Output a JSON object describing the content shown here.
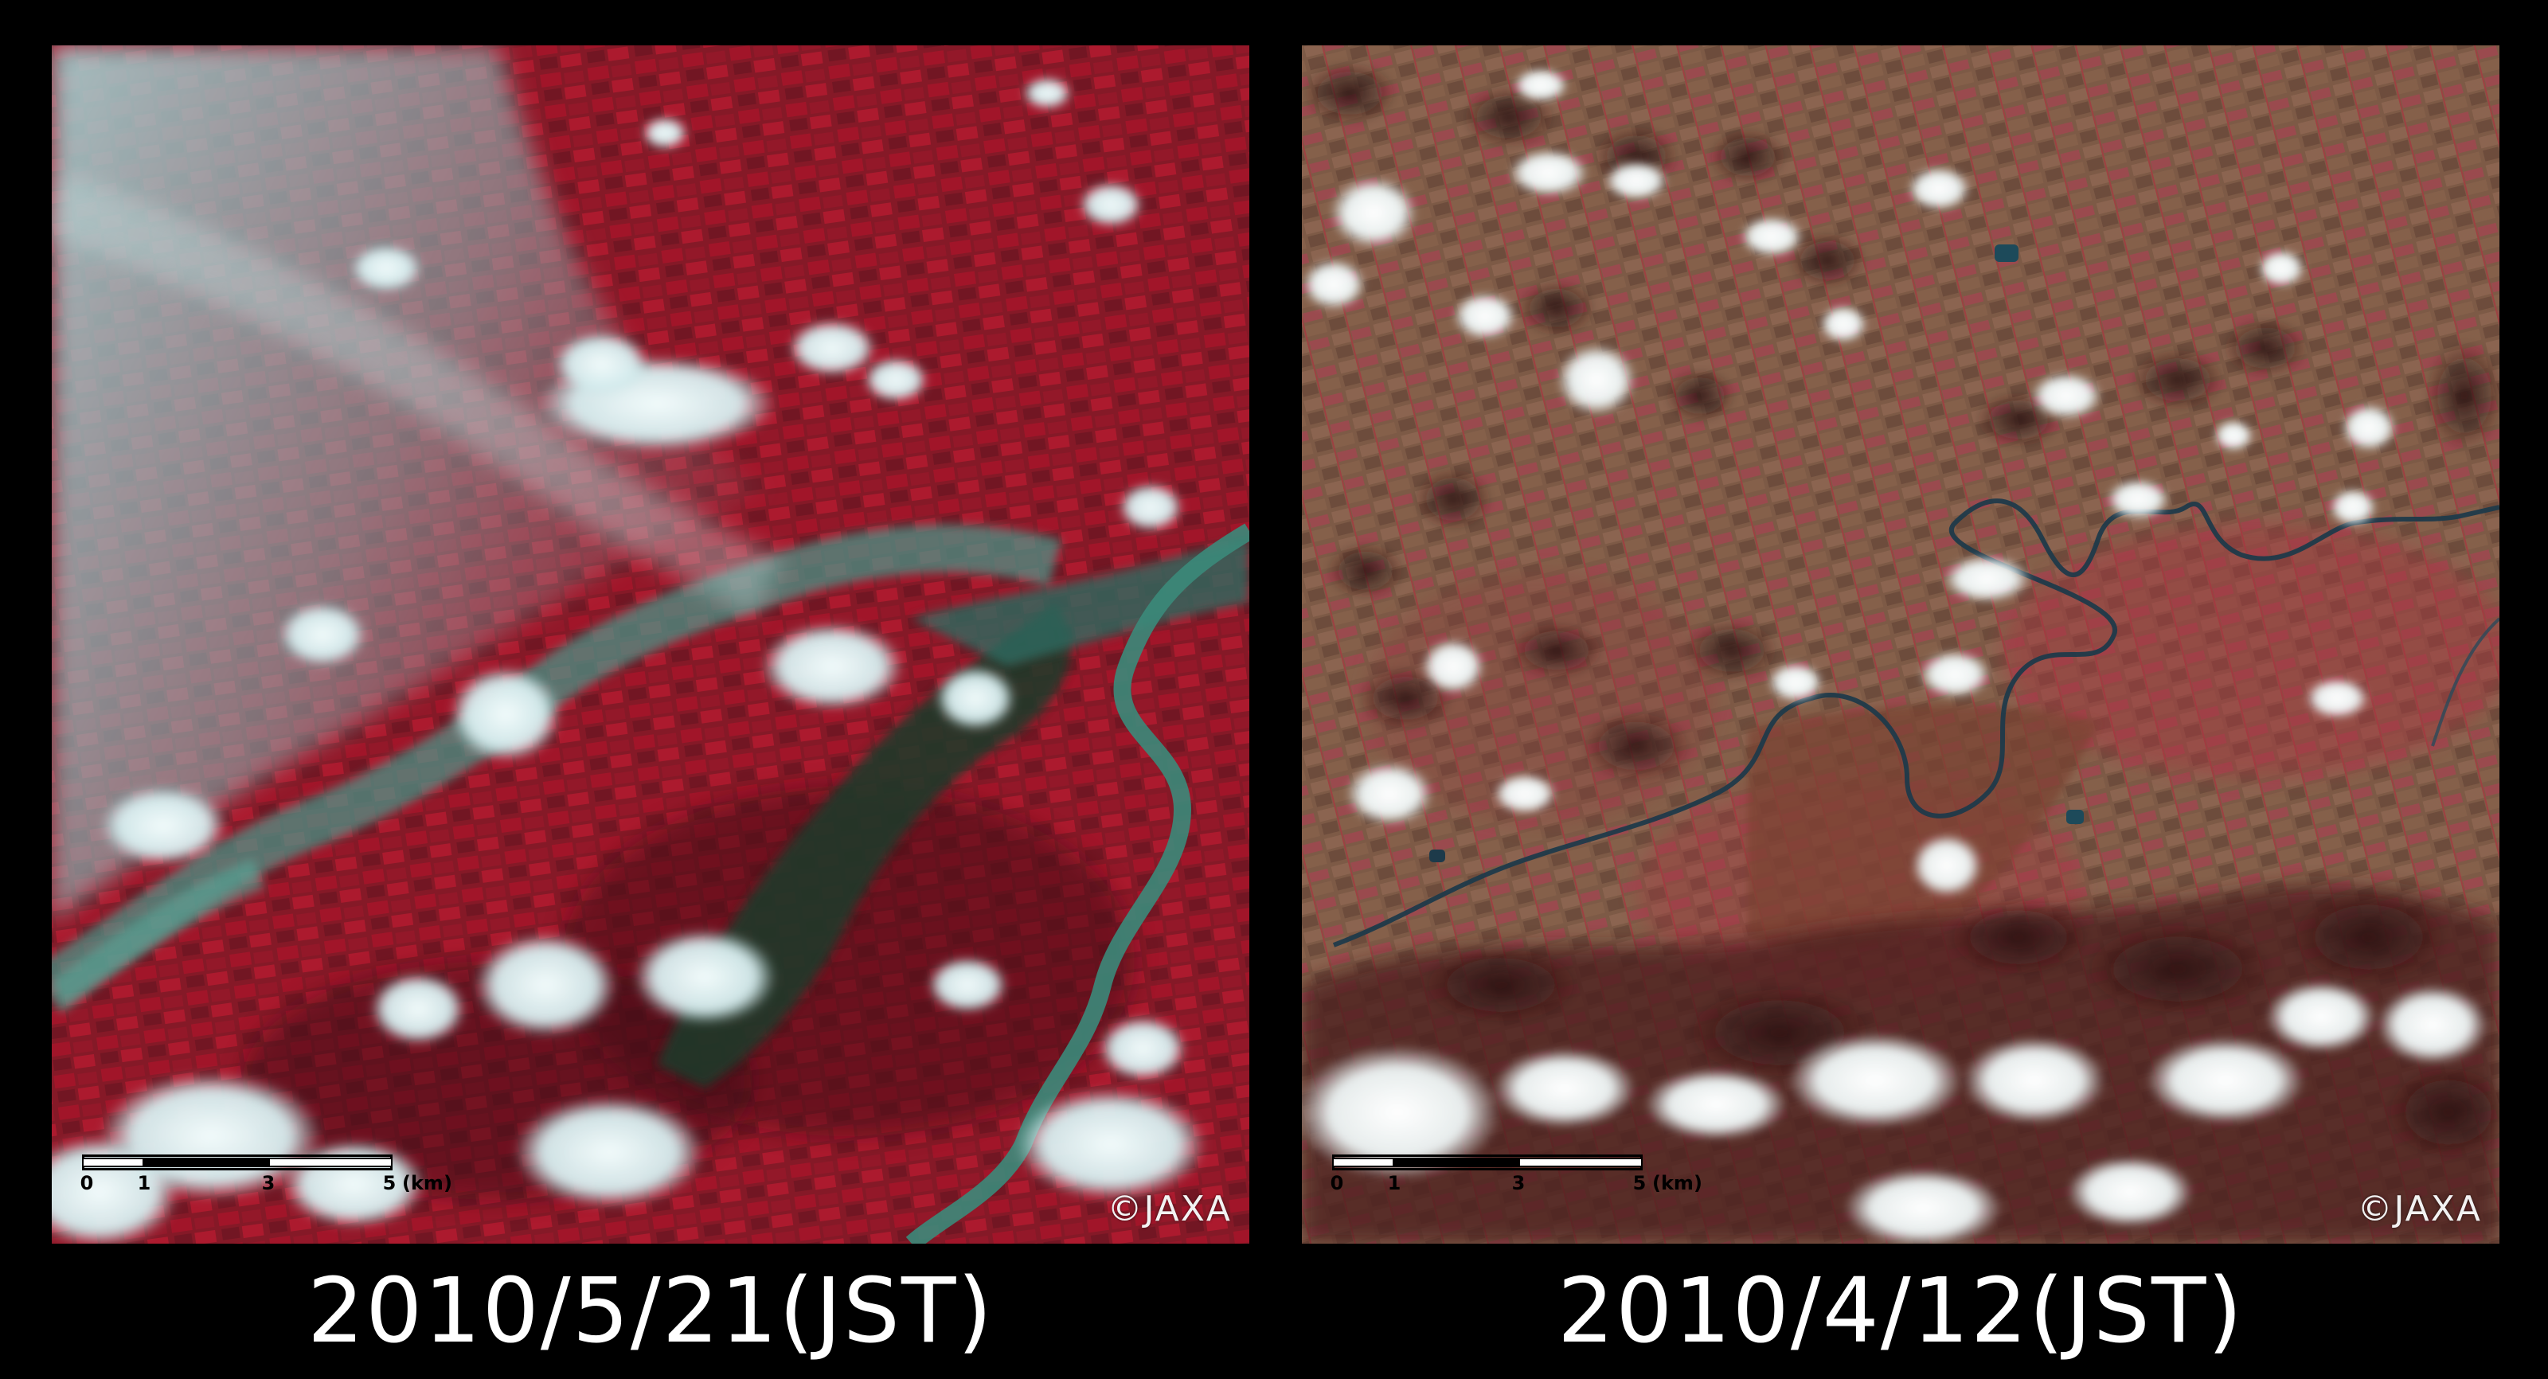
{
  "panels": [
    {
      "id": "after",
      "caption": "2010/5/21(JST)",
      "credit": "©JAXA",
      "scale": {
        "ticks": [
          "0",
          "1",
          "3",
          "5"
        ],
        "unit": "(km)"
      },
      "palette": {
        "base": "#7a1a26",
        "field": "#b8182e",
        "water": "#2f6a60",
        "cloud": "#dfefee",
        "haze": "#9fc6c6"
      }
    },
    {
      "id": "before",
      "caption": "2010/4/12(JST)",
      "credit": "©JAXA",
      "scale": {
        "ticks": [
          "0",
          "1",
          "3",
          "5"
        ],
        "unit": "(km)"
      },
      "palette": {
        "base": "#7c5a45",
        "field": "#b83a44",
        "water": "#1d3a4a",
        "cloud": "#f3f7f7",
        "shadow": "#3a1c1c"
      }
    }
  ]
}
